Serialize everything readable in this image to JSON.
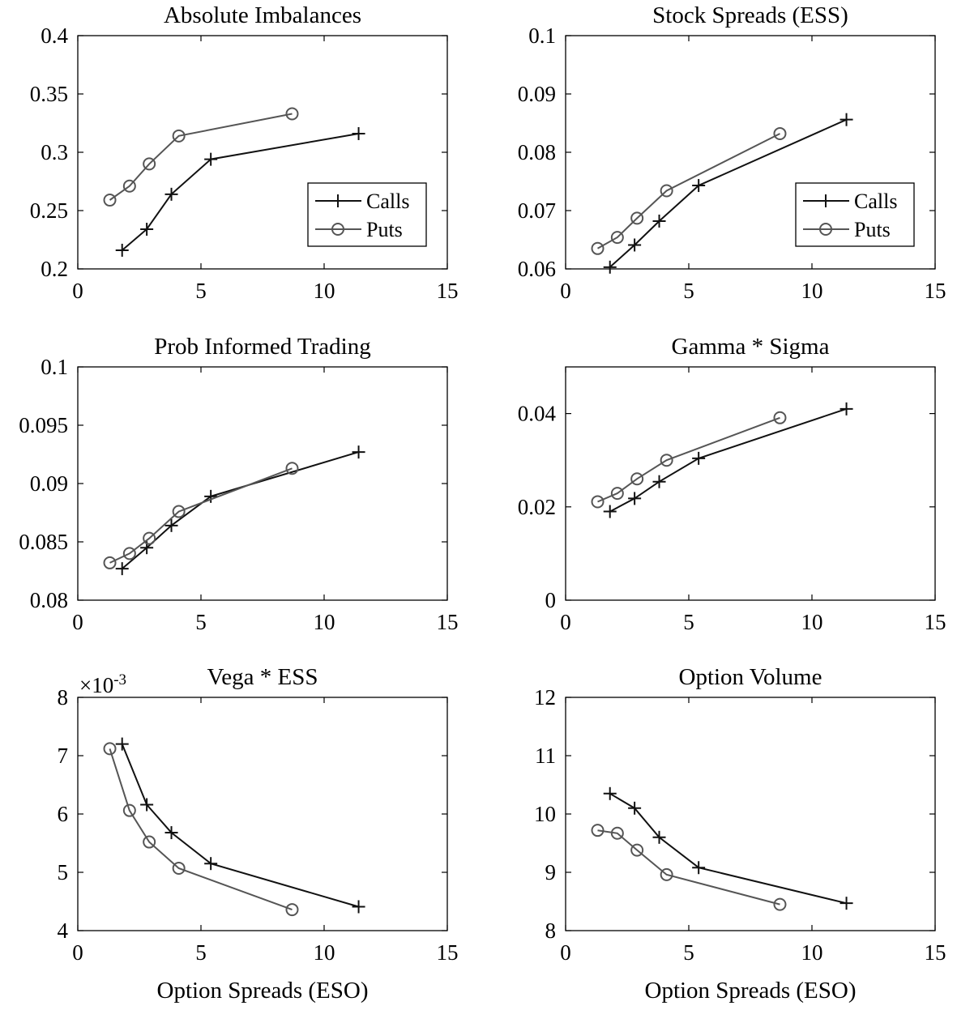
{
  "colors": {
    "calls": "#111111",
    "puts": "#555555"
  },
  "chart_data": [
    {
      "type": "line",
      "title": "Absolute Imbalances",
      "xlabel": "",
      "xlim": [
        0,
        15
      ],
      "xticks": [
        0,
        5,
        10,
        15
      ],
      "xticklabels": [
        "0",
        "5",
        "10",
        "15"
      ],
      "ylim": [
        0.2,
        0.4
      ],
      "yticks": [
        0.2,
        0.25,
        0.3,
        0.35,
        0.4
      ],
      "yticklabels": [
        "0.2",
        "0.25",
        "0.3",
        "0.35",
        "0.4"
      ],
      "exponent": "",
      "legend": "lower-right",
      "series": [
        {
          "name": "Calls",
          "marker": "plus",
          "x": [
            1.8,
            2.8,
            3.8,
            5.4,
            11.4
          ],
          "y": [
            0.216,
            0.234,
            0.264,
            0.294,
            0.316
          ]
        },
        {
          "name": "Puts",
          "marker": "circle",
          "x": [
            1.3,
            2.1,
            2.9,
            4.1,
            8.7
          ],
          "y": [
            0.259,
            0.271,
            0.29,
            0.314,
            0.333
          ]
        }
      ]
    },
    {
      "type": "line",
      "title": "Stock Spreads (ESS)",
      "xlabel": "",
      "xlim": [
        0,
        15
      ],
      "xticks": [
        0,
        5,
        10,
        15
      ],
      "xticklabels": [
        "0",
        "5",
        "10",
        "15"
      ],
      "ylim": [
        0.06,
        0.1
      ],
      "yticks": [
        0.06,
        0.07,
        0.08,
        0.09,
        0.1
      ],
      "yticklabels": [
        "0.06",
        "0.07",
        "0.08",
        "0.09",
        "0.1"
      ],
      "exponent": "",
      "legend": "lower-right",
      "series": [
        {
          "name": "Calls",
          "marker": "plus",
          "x": [
            1.8,
            2.8,
            3.8,
            5.4,
            11.4
          ],
          "y": [
            0.0603,
            0.0641,
            0.0682,
            0.0743,
            0.0856
          ]
        },
        {
          "name": "Puts",
          "marker": "circle",
          "x": [
            1.3,
            2.1,
            2.9,
            4.1,
            8.7
          ],
          "y": [
            0.0635,
            0.0654,
            0.0687,
            0.0734,
            0.0832
          ]
        }
      ]
    },
    {
      "type": "line",
      "title": "Prob Informed Trading",
      "xlabel": "",
      "xlim": [
        0,
        15
      ],
      "xticks": [
        0,
        5,
        10,
        15
      ],
      "xticklabels": [
        "0",
        "5",
        "10",
        "15"
      ],
      "ylim": [
        0.08,
        0.1
      ],
      "yticks": [
        0.08,
        0.085,
        0.09,
        0.095,
        0.1
      ],
      "yticklabels": [
        "0.08",
        "0.085",
        "0.09",
        "0.095",
        "0.1"
      ],
      "exponent": "",
      "legend": "none",
      "series": [
        {
          "name": "Calls",
          "marker": "plus",
          "x": [
            1.8,
            2.8,
            3.8,
            5.4,
            11.4
          ],
          "y": [
            0.0827,
            0.0845,
            0.0864,
            0.0889,
            0.0927
          ]
        },
        {
          "name": "Puts",
          "marker": "circle",
          "x": [
            1.3,
            2.1,
            2.9,
            4.1,
            8.7
          ],
          "y": [
            0.0832,
            0.084,
            0.0853,
            0.0876,
            0.0913
          ]
        }
      ]
    },
    {
      "type": "line",
      "title": "Gamma * Sigma",
      "xlabel": "",
      "xlim": [
        0,
        15
      ],
      "xticks": [
        0,
        5,
        10,
        15
      ],
      "xticklabels": [
        "0",
        "5",
        "10",
        "15"
      ],
      "ylim": [
        0,
        0.05
      ],
      "yticks": [
        0,
        0.02,
        0.04
      ],
      "yticklabels": [
        "0",
        "0.02",
        "0.04"
      ],
      "exponent": "",
      "legend": "none",
      "series": [
        {
          "name": "Calls",
          "marker": "plus",
          "x": [
            1.8,
            2.8,
            3.8,
            5.4,
            11.4
          ],
          "y": [
            0.019,
            0.0218,
            0.0254,
            0.0304,
            0.041
          ]
        },
        {
          "name": "Puts",
          "marker": "circle",
          "x": [
            1.3,
            2.1,
            2.9,
            4.1,
            8.7
          ],
          "y": [
            0.0211,
            0.0229,
            0.026,
            0.03,
            0.0391
          ]
        }
      ]
    },
    {
      "type": "line",
      "title": "Vega * ESS",
      "xlabel": "Option Spreads (ESO)",
      "xlim": [
        0,
        15
      ],
      "xticks": [
        0,
        5,
        10,
        15
      ],
      "xticklabels": [
        "0",
        "5",
        "10",
        "15"
      ],
      "ylim": [
        4,
        8
      ],
      "yticks": [
        4,
        5,
        6,
        7,
        8
      ],
      "yticklabels": [
        "4",
        "5",
        "6",
        "7",
        "8"
      ],
      "exponent": "-3",
      "legend": "none",
      "series": [
        {
          "name": "Calls",
          "marker": "plus",
          "x": [
            1.8,
            2.8,
            3.8,
            5.4,
            11.4
          ],
          "y": [
            7.2,
            6.16,
            5.68,
            5.15,
            4.41
          ]
        },
        {
          "name": "Puts",
          "marker": "circle",
          "x": [
            1.3,
            2.1,
            2.9,
            4.1,
            8.7
          ],
          "y": [
            7.12,
            6.06,
            5.52,
            5.07,
            4.36
          ]
        }
      ]
    },
    {
      "type": "line",
      "title": "Option Volume",
      "xlabel": "Option Spreads (ESO)",
      "xlim": [
        0,
        15
      ],
      "xticks": [
        0,
        5,
        10,
        15
      ],
      "xticklabels": [
        "0",
        "5",
        "10",
        "15"
      ],
      "ylim": [
        8,
        12
      ],
      "yticks": [
        8,
        9,
        10,
        11,
        12
      ],
      "yticklabels": [
        "8",
        "9",
        "10",
        "11",
        "12"
      ],
      "exponent": "",
      "legend": "none",
      "series": [
        {
          "name": "Calls",
          "marker": "plus",
          "x": [
            1.8,
            2.8,
            3.8,
            5.4,
            11.4
          ],
          "y": [
            10.35,
            10.1,
            9.6,
            9.08,
            8.47
          ]
        },
        {
          "name": "Puts",
          "marker": "circle",
          "x": [
            1.3,
            2.1,
            2.9,
            4.1,
            8.7
          ],
          "y": [
            9.72,
            9.67,
            9.38,
            8.96,
            8.45
          ]
        }
      ]
    }
  ]
}
